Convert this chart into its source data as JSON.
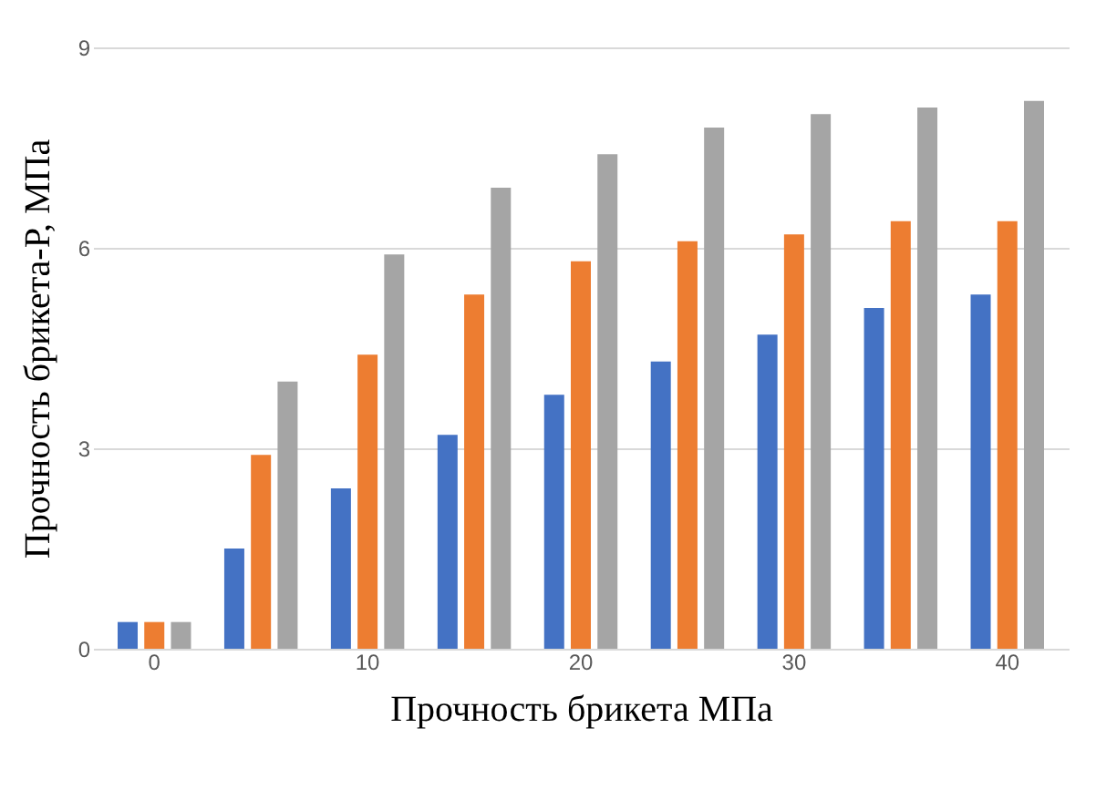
{
  "chart_data": {
    "type": "bar",
    "xlabel": "Прочность брикета МПа",
    "ylabel": "Прочность брикета-Р, МПа",
    "categories": [
      "0",
      null,
      "10",
      null,
      "20",
      null,
      "30",
      null,
      "40"
    ],
    "series": [
      {
        "color": "#4472c4",
        "values": [
          0.4,
          1.5,
          2.4,
          3.2,
          3.8,
          4.3,
          4.7,
          5.1,
          5.3
        ]
      },
      {
        "color": "#ed7d31",
        "values": [
          0.4,
          2.9,
          4.4,
          5.3,
          5.8,
          6.1,
          6.2,
          6.4,
          6.4
        ]
      },
      {
        "color": "#a5a5a5",
        "values": [
          0.4,
          4.0,
          5.9,
          6.9,
          7.4,
          7.8,
          8.0,
          8.1,
          8.2
        ]
      }
    ],
    "ylim": [
      0,
      9
    ],
    "yticks": [
      0,
      3,
      6,
      9
    ],
    "grid": "y",
    "legend": false
  }
}
